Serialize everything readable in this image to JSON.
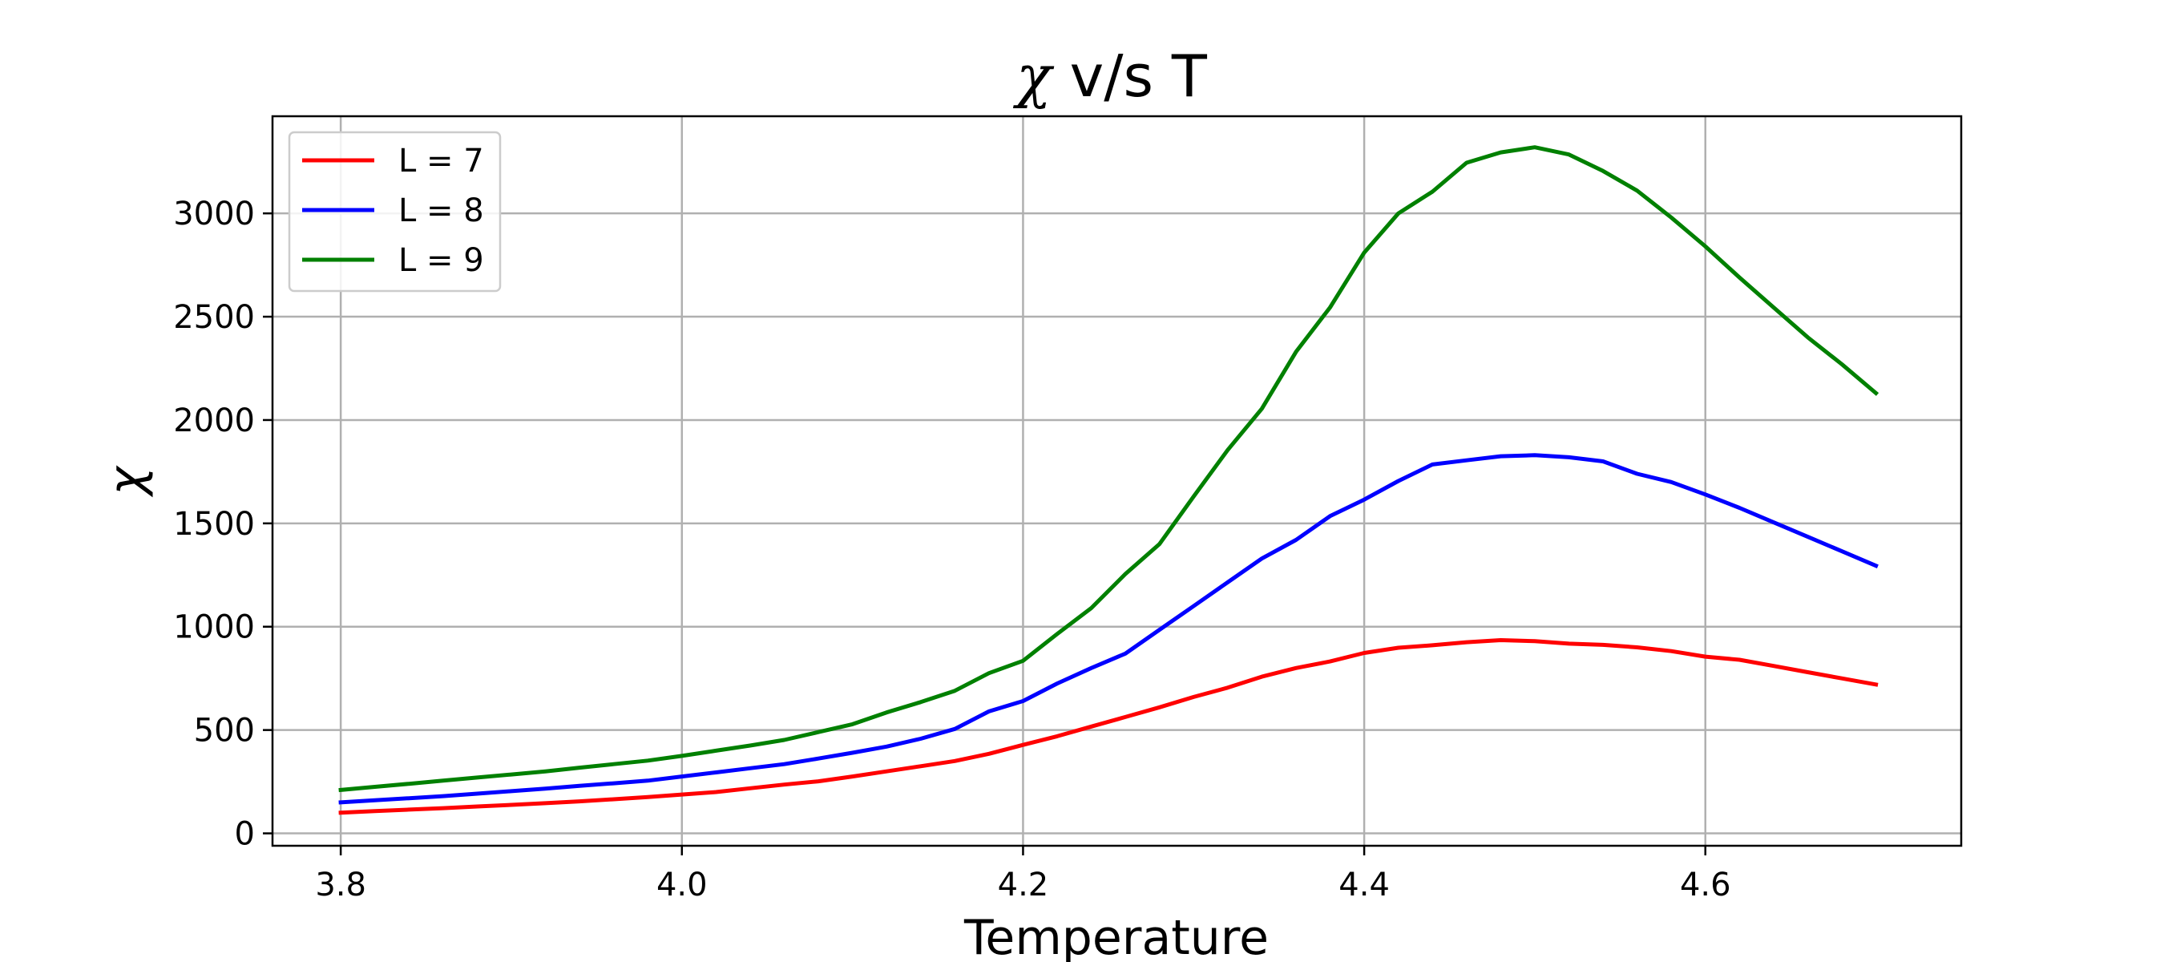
{
  "chart_data": {
    "type": "line",
    "title": "χ v/s T",
    "xlabel": "Temperature",
    "ylabel": "χ",
    "xlim": [
      3.76,
      4.75
    ],
    "ylim": [
      -60,
      3470
    ],
    "xticks": [
      3.8,
      4.0,
      4.2,
      4.4,
      4.6
    ],
    "xtick_labels": [
      "3.8",
      "4.0",
      "4.2",
      "4.4",
      "4.6"
    ],
    "yticks": [
      0,
      500,
      1000,
      1500,
      2000,
      2500,
      3000
    ],
    "ytick_labels": [
      "0",
      "500",
      "1000",
      "1500",
      "2000",
      "2500",
      "3000"
    ],
    "grid": true,
    "legend_position": "top-left",
    "x": [
      3.8,
      3.82,
      3.84,
      3.86,
      3.88,
      3.9,
      3.92,
      3.94,
      3.96,
      3.98,
      4.0,
      4.02,
      4.04,
      4.06,
      4.08,
      4.1,
      4.12,
      4.14,
      4.16,
      4.18,
      4.2,
      4.22,
      4.24,
      4.26,
      4.28,
      4.3,
      4.32,
      4.34,
      4.36,
      4.38,
      4.4,
      4.42,
      4.44,
      4.46,
      4.48,
      4.5,
      4.52,
      4.54,
      4.56,
      4.58,
      4.6,
      4.62,
      4.64,
      4.66,
      4.68,
      4.7
    ],
    "series": [
      {
        "name": "L = 7",
        "color": "#ff0000",
        "values": [
          100,
          108,
          115,
          122,
          130,
          138,
          146,
          155,
          165,
          176,
          188,
          200,
          218,
          236,
          252,
          275,
          300,
          325,
          350,
          385,
          428,
          470,
          517,
          563,
          610,
          660,
          705,
          758,
          800,
          832,
          873,
          898,
          910,
          925,
          935,
          930,
          918,
          912,
          900,
          882,
          855,
          840,
          810,
          780,
          750,
          720
        ]
      },
      {
        "name": "L = 8",
        "color": "#0000ff",
        "values": [
          150,
          160,
          170,
          180,
          192,
          204,
          216,
          230,
          242,
          255,
          275,
          295,
          315,
          335,
          362,
          390,
          420,
          458,
          505,
          590,
          640,
          725,
          800,
          870,
          985,
          1100,
          1215,
          1330,
          1420,
          1535,
          1615,
          1705,
          1785,
          1805,
          1825,
          1830,
          1820,
          1800,
          1740,
          1700,
          1640,
          1575,
          1505,
          1435,
          1365,
          1295
        ]
      },
      {
        "name": "L = 9",
        "color": "#008000",
        "values": [
          210,
          225,
          240,
          255,
          270,
          285,
          300,
          318,
          335,
          352,
          375,
          400,
          425,
          452,
          490,
          528,
          585,
          635,
          690,
          775,
          835,
          965,
          1090,
          1255,
          1400,
          1630,
          1855,
          2055,
          2330,
          2545,
          2810,
          3000,
          3105,
          3245,
          3295,
          3320,
          3285,
          3205,
          3110,
          2980,
          2840,
          2690,
          2545,
          2400,
          2270,
          2130
        ]
      }
    ]
  }
}
